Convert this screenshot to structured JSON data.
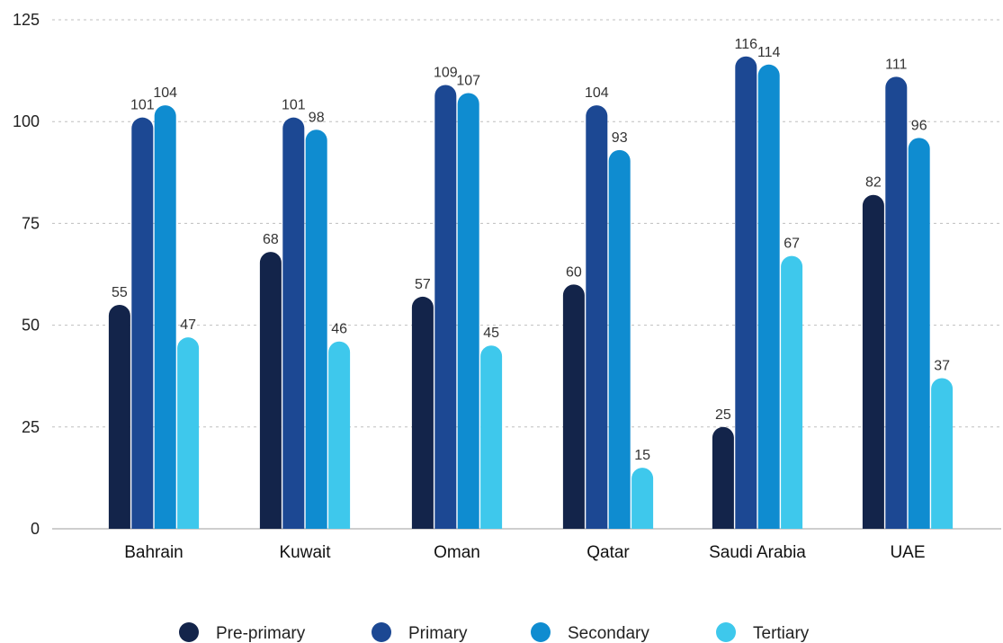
{
  "chart_data": {
    "type": "bar",
    "categories": [
      "Bahrain",
      "Kuwait",
      "Oman",
      "Qatar",
      "Saudi Arabia",
      "UAE"
    ],
    "series": [
      {
        "name": "Pre-primary",
        "color": "#13244a",
        "values": [
          55,
          68,
          57,
          60,
          25,
          82
        ]
      },
      {
        "name": "Primary",
        "color": "#1c4893",
        "values": [
          101,
          101,
          109,
          104,
          116,
          111
        ]
      },
      {
        "name": "Secondary",
        "color": "#0f8cd0",
        "values": [
          104,
          98,
          107,
          93,
          114,
          96
        ]
      },
      {
        "name": "Tertiary",
        "color": "#3ec8ec",
        "values": [
          47,
          46,
          45,
          15,
          67,
          37
        ]
      }
    ],
    "y_ticks": [
      "0",
      "25",
      "50",
      "75",
      "100",
      "125"
    ],
    "ylim": [
      0,
      125
    ],
    "grid": true,
    "legend_position": "bottom-center",
    "title": "",
    "xlabel": "",
    "ylabel": ""
  }
}
